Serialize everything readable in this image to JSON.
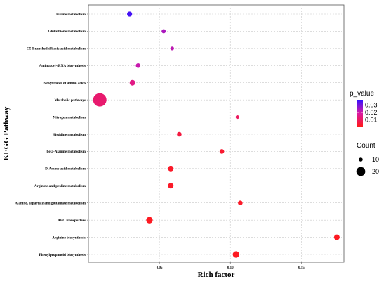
{
  "chart_data": {
    "type": "scatter",
    "xlabel": "Rich factor",
    "ylabel": "KEGG Pathway",
    "xlim": [
      0.0,
      0.18
    ],
    "x_ticks": [
      "0.05",
      "0.10",
      "0.15"
    ],
    "grid": true,
    "categories": [
      "Purine metabolism",
      "Glutathione metabolism",
      "C5-Branched dibasic acid metabolism",
      "Aminoacyl-tRNA biosynthesis",
      "Biosynthesis of amino acids",
      "Metabolic pathways",
      "Nitrogen metabolism",
      "Histidine metabolism",
      "beta-Alanine metabolism",
      "D-Amino acid metabolism",
      "Arginine and proline metabolism",
      "Alanine, aspartate and glutamate metabolism",
      "ABC transporters",
      "Arginine biosynthesis",
      "Phenylpropanoid biosynthesis"
    ],
    "points": [
      {
        "pathway": "Purine metabolism",
        "rich_factor": 0.029,
        "count": 6,
        "p_value": 0.035
      },
      {
        "pathway": "Glutathione metabolism",
        "rich_factor": 0.053,
        "count": 4,
        "p_value": 0.024
      },
      {
        "pathway": "C5-Branched dibasic acid metabolism",
        "rich_factor": 0.059,
        "count": 3,
        "p_value": 0.022
      },
      {
        "pathway": "Aminoacyl-tRNA biosynthesis",
        "rich_factor": 0.035,
        "count": 5,
        "p_value": 0.021
      },
      {
        "pathway": "Biosynthesis of amino acids",
        "rich_factor": 0.031,
        "count": 7,
        "p_value": 0.015
      },
      {
        "pathway": "Metabolic pathways",
        "rich_factor": 0.008,
        "count": 23,
        "p_value": 0.012
      },
      {
        "pathway": "Nitrogen metabolism",
        "rich_factor": 0.105,
        "count": 3,
        "p_value": 0.01
      },
      {
        "pathway": "Histidine metabolism",
        "rich_factor": 0.064,
        "count": 5,
        "p_value": 0.006
      },
      {
        "pathway": "beta-Alanine metabolism",
        "rich_factor": 0.094,
        "count": 5,
        "p_value": 0.004
      },
      {
        "pathway": "D-Amino acid metabolism",
        "rich_factor": 0.058,
        "count": 7,
        "p_value": 0.003
      },
      {
        "pathway": "Arginine and proline metabolism",
        "rich_factor": 0.058,
        "count": 7,
        "p_value": 0.003
      },
      {
        "pathway": "Alanine, aspartate and glutamate metabolism",
        "rich_factor": 0.107,
        "count": 5,
        "p_value": 0.003
      },
      {
        "pathway": "ABC transporters",
        "rich_factor": 0.043,
        "count": 9,
        "p_value": 0.002
      },
      {
        "pathway": "Arginine biosynthesis",
        "rich_factor": 0.175,
        "count": 7,
        "p_value": 0.002
      },
      {
        "pathway": "Phenylpropanoid biosynthesis",
        "rich_factor": 0.104,
        "count": 9,
        "p_value": 0.002
      }
    ],
    "color_legend": {
      "title": "p_value",
      "ticks": [
        "0.03",
        "0.02",
        "0.01"
      ],
      "range": [
        0.001,
        0.037
      ],
      "colors": {
        "low": "#ff1a1a",
        "mid": "#d91aa3",
        "high": "#3311ff"
      }
    },
    "size_legend": {
      "title": "Count",
      "entries": [
        {
          "label": "10",
          "count": 10
        },
        {
          "label": "20",
          "count": 20
        }
      ]
    }
  }
}
